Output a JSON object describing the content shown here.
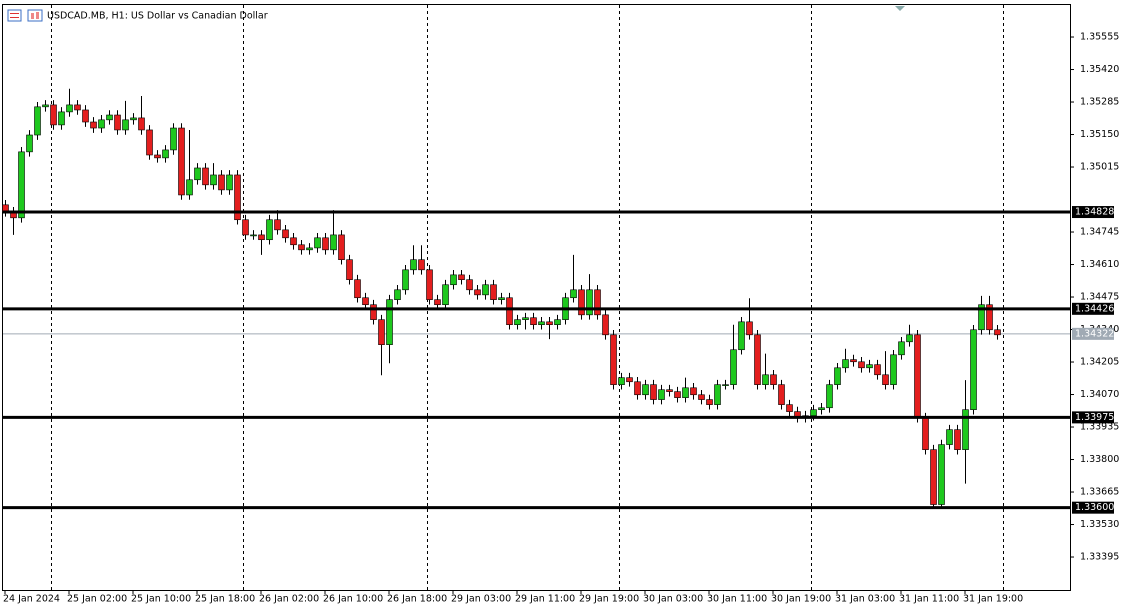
{
  "chart_data": {
    "type": "candlestick",
    "title": "USDCAD.MB, H1:  US Dollar vs Canadian Dollar",
    "categories": [
      "24 Jan 2024",
      null,
      null,
      null,
      null,
      null,
      null,
      null,
      "25 Jan 02:00",
      null,
      null,
      null,
      null,
      null,
      null,
      null,
      "25 Jan 10:00",
      null,
      null,
      null,
      null,
      null,
      null,
      null,
      "25 Jan 18:00",
      null,
      null,
      null,
      null,
      null,
      null,
      null,
      "26 Jan 02:00",
      null,
      null,
      null,
      null,
      null,
      null,
      null,
      "26 Jan 10:00",
      null,
      null,
      null,
      null,
      null,
      null,
      null,
      "26 Jan 18:00",
      null,
      null,
      null,
      null,
      null,
      null,
      null,
      "29 Jan 03:00",
      null,
      null,
      null,
      null,
      null,
      null,
      null,
      "29 Jan 11:00",
      null,
      null,
      null,
      null,
      null,
      null,
      null,
      "29 Jan 19:00",
      null,
      null,
      null,
      null,
      null,
      null,
      null,
      "30 Jan 03:00",
      null,
      null,
      null,
      null,
      null,
      null,
      null,
      "30 Jan 11:00",
      null,
      null,
      null,
      null,
      null,
      null,
      null,
      "30 Jan 19:00",
      null,
      null,
      null,
      null,
      null,
      null,
      null,
      "31 Jan 03:00",
      null,
      null,
      null,
      null,
      null,
      null,
      null,
      "31 Jan 11:00",
      null,
      null,
      null,
      null,
      null,
      null,
      null,
      "31 Jan 19:00",
      null,
      null,
      null,
      null
    ],
    "open": [
      1.34858,
      1.34829,
      1.34804,
      1.35078,
      1.35148,
      1.35265,
      1.35273,
      1.3519,
      1.35244,
      1.35273,
      1.35252,
      1.35202,
      1.35177,
      1.35211,
      1.35231,
      1.35169,
      1.35211,
      1.35219,
      1.35169,
      1.35065,
      1.35053,
      1.35086,
      1.35177,
      1.34899,
      1.34962,
      1.35011,
      1.34941,
      1.34982,
      1.3492,
      1.34982,
      1.34796,
      1.34733,
      1.34733,
      1.34713,
      1.34796,
      1.34754,
      1.34721,
      1.34692,
      1.34671,
      1.34679,
      1.34721,
      1.34671,
      1.34733,
      1.3463,
      1.34547,
      1.34472,
      1.34443,
      1.34381,
      1.34277,
      1.34464,
      1.34505,
      1.34588,
      1.3463,
      1.34588,
      1.34464,
      1.34443,
      1.34526,
      1.34567,
      1.34547,
      1.34505,
      1.34484,
      1.34526,
      1.34464,
      1.34472,
      1.3436,
      1.34381,
      1.34389,
      1.3436,
      1.34372,
      1.3436,
      1.34381,
      1.34472,
      1.34505,
      1.34401,
      1.34505,
      1.34401,
      1.34318,
      1.34111,
      1.3414,
      1.34123,
      1.34069,
      1.34111,
      1.34049,
      1.3409,
      1.34082,
      1.34057,
      1.34098,
      1.34069,
      1.34049,
      1.34028,
      1.34111,
      1.34111,
      1.34256,
      1.34372,
      1.34318,
      1.34111,
      1.34152,
      1.34111,
      1.34028,
      1.33999,
      1.33974,
      1.33982,
      1.34007,
      1.34015,
      1.34111,
      1.34181,
      1.34215,
      1.34206,
      1.34181,
      1.34194,
      1.34152,
      1.34111,
      1.34235,
      1.34289,
      1.34318,
      1.33974,
      1.33841,
      1.33613,
      1.33862,
      1.33924,
      1.33841,
      1.34007,
      1.34339,
      1.34443,
      1.34339
    ],
    "high": [
      1.34878,
      1.34849,
      1.35098,
      1.35168,
      1.35285,
      1.35293,
      1.35293,
      1.35264,
      1.3534,
      1.35293,
      1.35272,
      1.35222,
      1.35231,
      1.35251,
      1.35251,
      1.3529,
      1.35239,
      1.3531,
      1.35189,
      1.35085,
      1.35106,
      1.35197,
      1.35197,
      1.35169,
      1.35031,
      1.35031,
      1.35031,
      1.35002,
      1.35002,
      1.35002,
      1.34816,
      1.34753,
      1.34753,
      1.34816,
      1.34836,
      1.34774,
      1.34741,
      1.34712,
      1.34699,
      1.34741,
      1.34741,
      1.34836,
      1.34753,
      1.3465,
      1.34567,
      1.34492,
      1.34463,
      1.34401,
      1.34484,
      1.34525,
      1.34608,
      1.3469,
      1.3469,
      1.34608,
      1.34484,
      1.34546,
      1.34587,
      1.34587,
      1.34567,
      1.34525,
      1.34546,
      1.34546,
      1.34492,
      1.34492,
      1.34401,
      1.34409,
      1.34409,
      1.34392,
      1.34392,
      1.34401,
      1.34492,
      1.3465,
      1.34525,
      1.3457,
      1.34525,
      1.34421,
      1.34338,
      1.3416,
      1.3416,
      1.34143,
      1.34131,
      1.34131,
      1.3411,
      1.3411,
      1.34102,
      1.3414,
      1.34118,
      1.34089,
      1.34069,
      1.34131,
      1.34131,
      1.3436,
      1.34392,
      1.3447,
      1.34338,
      1.3424,
      1.34172,
      1.34131,
      1.34048,
      1.34019,
      1.34002,
      1.34027,
      1.34035,
      1.34131,
      1.34201,
      1.3426,
      1.34235,
      1.34226,
      1.34214,
      1.34214,
      1.3425,
      1.34255,
      1.34309,
      1.3436,
      1.34338,
      1.33994,
      1.33861,
      1.33882,
      1.33944,
      1.33944,
      1.3413,
      1.34359,
      1.3448,
      1.3448,
      1.34359
    ],
    "low": [
      1.34809,
      1.34733,
      1.34784,
      1.35058,
      1.35128,
      1.35245,
      1.3517,
      1.3517,
      1.35224,
      1.35232,
      1.35182,
      1.35157,
      1.35157,
      1.35191,
      1.35149,
      1.35149,
      1.35191,
      1.35149,
      1.35045,
      1.35033,
      1.35033,
      1.35066,
      1.34879,
      1.34879,
      1.34942,
      1.34921,
      1.34921,
      1.349,
      1.349,
      1.34776,
      1.34713,
      1.34713,
      1.3465,
      1.34693,
      1.34734,
      1.34701,
      1.34672,
      1.34651,
      1.34651,
      1.34659,
      1.34651,
      1.34651,
      1.3461,
      1.34527,
      1.34452,
      1.34423,
      1.34361,
      1.3415,
      1.342,
      1.34444,
      1.34485,
      1.34568,
      1.34568,
      1.34444,
      1.34423,
      1.34423,
      1.34506,
      1.34527,
      1.34485,
      1.34464,
      1.34464,
      1.34444,
      1.34444,
      1.3434,
      1.3434,
      1.3434,
      1.3434,
      1.3434,
      1.343,
      1.3434,
      1.34361,
      1.34452,
      1.34381,
      1.34381,
      1.34381,
      1.34298,
      1.34091,
      1.34091,
      1.34103,
      1.34049,
      1.34049,
      1.34029,
      1.34029,
      1.34062,
      1.34037,
      1.34037,
      1.34049,
      1.34029,
      1.34008,
      1.34008,
      1.34091,
      1.34091,
      1.34236,
      1.34298,
      1.34091,
      1.34091,
      1.34091,
      1.34008,
      1.33979,
      1.33954,
      1.33954,
      1.33962,
      1.33987,
      1.33995,
      1.34091,
      1.34161,
      1.34186,
      1.34161,
      1.34161,
      1.34132,
      1.34091,
      1.34091,
      1.34215,
      1.34269,
      1.33954,
      1.33821,
      1.336,
      1.336,
      1.33842,
      1.33821,
      1.337,
      1.33987,
      1.34319,
      1.34319,
      1.34298
    ],
    "close": [
      1.34829,
      1.34804,
      1.35078,
      1.35148,
      1.35265,
      1.35273,
      1.3519,
      1.35244,
      1.35273,
      1.35252,
      1.35202,
      1.35177,
      1.35211,
      1.35231,
      1.35169,
      1.35211,
      1.35219,
      1.35169,
      1.35065,
      1.35053,
      1.35086,
      1.35177,
      1.34899,
      1.34962,
      1.35011,
      1.34941,
      1.34982,
      1.3492,
      1.34982,
      1.34796,
      1.34733,
      1.34733,
      1.34713,
      1.34796,
      1.34754,
      1.34721,
      1.34692,
      1.34671,
      1.34679,
      1.34721,
      1.34671,
      1.34733,
      1.3463,
      1.34547,
      1.34472,
      1.34443,
      1.34381,
      1.34277,
      1.34464,
      1.34505,
      1.34588,
      1.3463,
      1.34588,
      1.34464,
      1.34443,
      1.34526,
      1.34567,
      1.34547,
      1.34505,
      1.34484,
      1.34526,
      1.34464,
      1.34472,
      1.3436,
      1.34381,
      1.34389,
      1.3436,
      1.34372,
      1.3436,
      1.34381,
      1.34472,
      1.34505,
      1.34401,
      1.34505,
      1.34401,
      1.34318,
      1.34111,
      1.3414,
      1.34123,
      1.34069,
      1.34111,
      1.34049,
      1.3409,
      1.34082,
      1.34057,
      1.34098,
      1.34069,
      1.34049,
      1.34028,
      1.34111,
      1.34111,
      1.34256,
      1.34372,
      1.34318,
      1.34111,
      1.34152,
      1.34111,
      1.34028,
      1.33999,
      1.33974,
      1.33982,
      1.34007,
      1.34015,
      1.34111,
      1.34181,
      1.34215,
      1.34206,
      1.34181,
      1.34194,
      1.34152,
      1.34111,
      1.34235,
      1.34289,
      1.34318,
      1.33974,
      1.33841,
      1.33613,
      1.33862,
      1.33924,
      1.33841,
      1.34007,
      1.34339,
      1.34443,
      1.34339,
      1.34318
    ],
    "bull_color": "#1ec81e",
    "bear_color": "#e41e1e",
    "ylim": [
      1.33258,
      1.35688
    ],
    "yticks": [
      1.35555,
      {
        "value": 1.3542,
        "label": "1.35420"
      },
      1.35285,
      {
        "value": 1.3515,
        "label": "1.35150"
      },
      1.35015,
      1.34745,
      {
        "value": 1.3461,
        "label": "1.34610"
      },
      1.34475,
      {
        "value": 1.3434,
        "label": "1.34340"
      },
      1.34205,
      {
        "value": 1.3407,
        "label": "1.34070"
      },
      1.33935,
      {
        "value": 1.338,
        "label": "1.33800"
      },
      1.33665,
      {
        "value": 1.3353,
        "label": "1.33530"
      },
      1.33395
    ],
    "levels": [
      1.34828,
      1.34426,
      1.33975,
      {
        "value": 1.336,
        "label": "1.33600"
      }
    ],
    "last_price": 1.34322,
    "grid": false
  }
}
